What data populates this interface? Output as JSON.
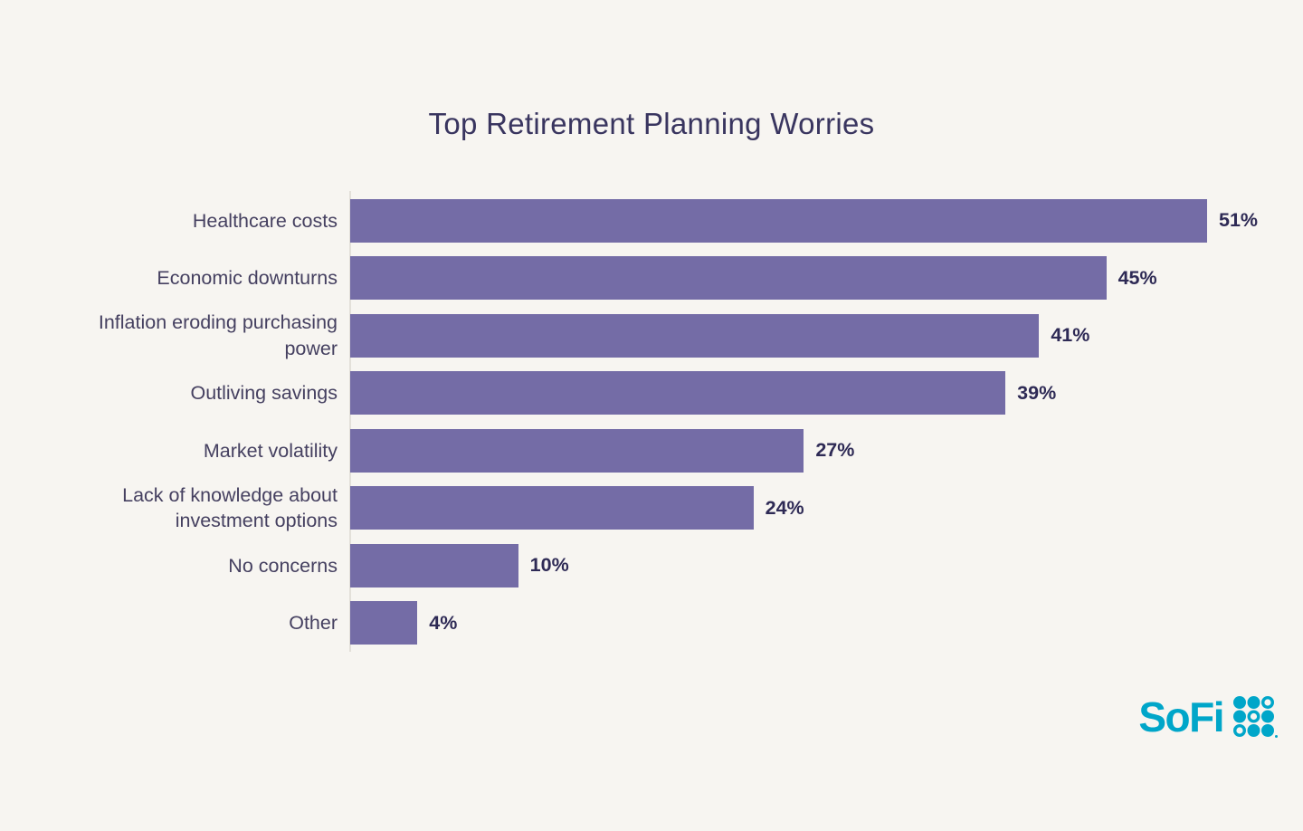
{
  "title": "Top Retirement Planning Worries",
  "colors": {
    "background": "#f7f5f1",
    "bar": "#746ca6",
    "title_text": "#39355f",
    "category_text": "#454060",
    "value_text": "#2e2a55",
    "axis_line": "#e3e0d9",
    "logo_teal": "#00a6c9"
  },
  "chart_data": {
    "type": "bar",
    "orientation": "horizontal",
    "title": "Top Retirement Planning Worries",
    "categories": [
      "Healthcare costs",
      "Economic downturns",
      "Inflation eroding purchasing\npower",
      "Outliving savings",
      "Market volatility",
      "Lack of knowledge about\ninvestment options",
      "No concerns",
      "Other"
    ],
    "values": [
      51,
      45,
      41,
      39,
      27,
      24,
      10,
      4
    ],
    "value_labels": [
      "51%",
      "45%",
      "41%",
      "39%",
      "27%",
      "24%",
      "10%",
      "4%"
    ],
    "xlim": [
      0,
      57
    ],
    "grid": false,
    "legend": "none",
    "bar_color": "#746ca6"
  },
  "logo": {
    "text": "SoFi",
    "dot_pattern": [
      [
        "filled",
        "filled",
        "hollow"
      ],
      [
        "filled",
        "hollow",
        "filled"
      ],
      [
        "hollow",
        "filled",
        "filled"
      ]
    ]
  }
}
